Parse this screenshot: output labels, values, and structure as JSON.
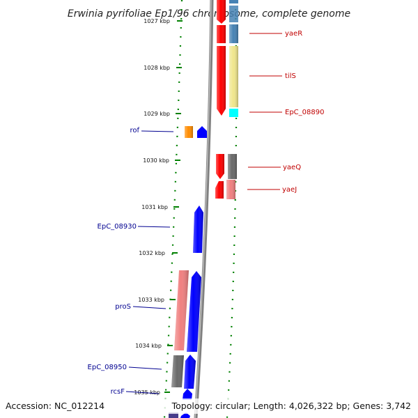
{
  "title": "Erwinia pyrifoliae Ep1/96 chromosome, complete genome",
  "footer": {
    "accession": "Accession: NC_012214",
    "topology": "Topology: circular; Length: 4,026,322 bp; Genes: 3,742"
  },
  "ticks": [
    "1027 kbp",
    "1028 kbp",
    "1029 kbp",
    "1030 kbp",
    "1031 kbp",
    "1032 kbp",
    "1033 kbp",
    "1034 kbp",
    "1035 kbp"
  ],
  "genes_right": [
    "yaeR",
    "tilS",
    "EpC_08890",
    "yaeQ",
    "yaeJ"
  ],
  "genes_left": [
    "rof",
    "EpC_08930",
    "proS",
    "EpC_08950",
    "rcsF"
  ],
  "colors": {
    "red": "#ff0000",
    "blue": "#0000ff",
    "steel_blue": "#4682b4",
    "khaki": "#f0e68c",
    "cyan": "#00ffff",
    "orange": "#ff8c00",
    "dim_gray": "#696969",
    "light_coral": "#f08080",
    "backbone": "#808080",
    "ruler": "#008000"
  }
}
